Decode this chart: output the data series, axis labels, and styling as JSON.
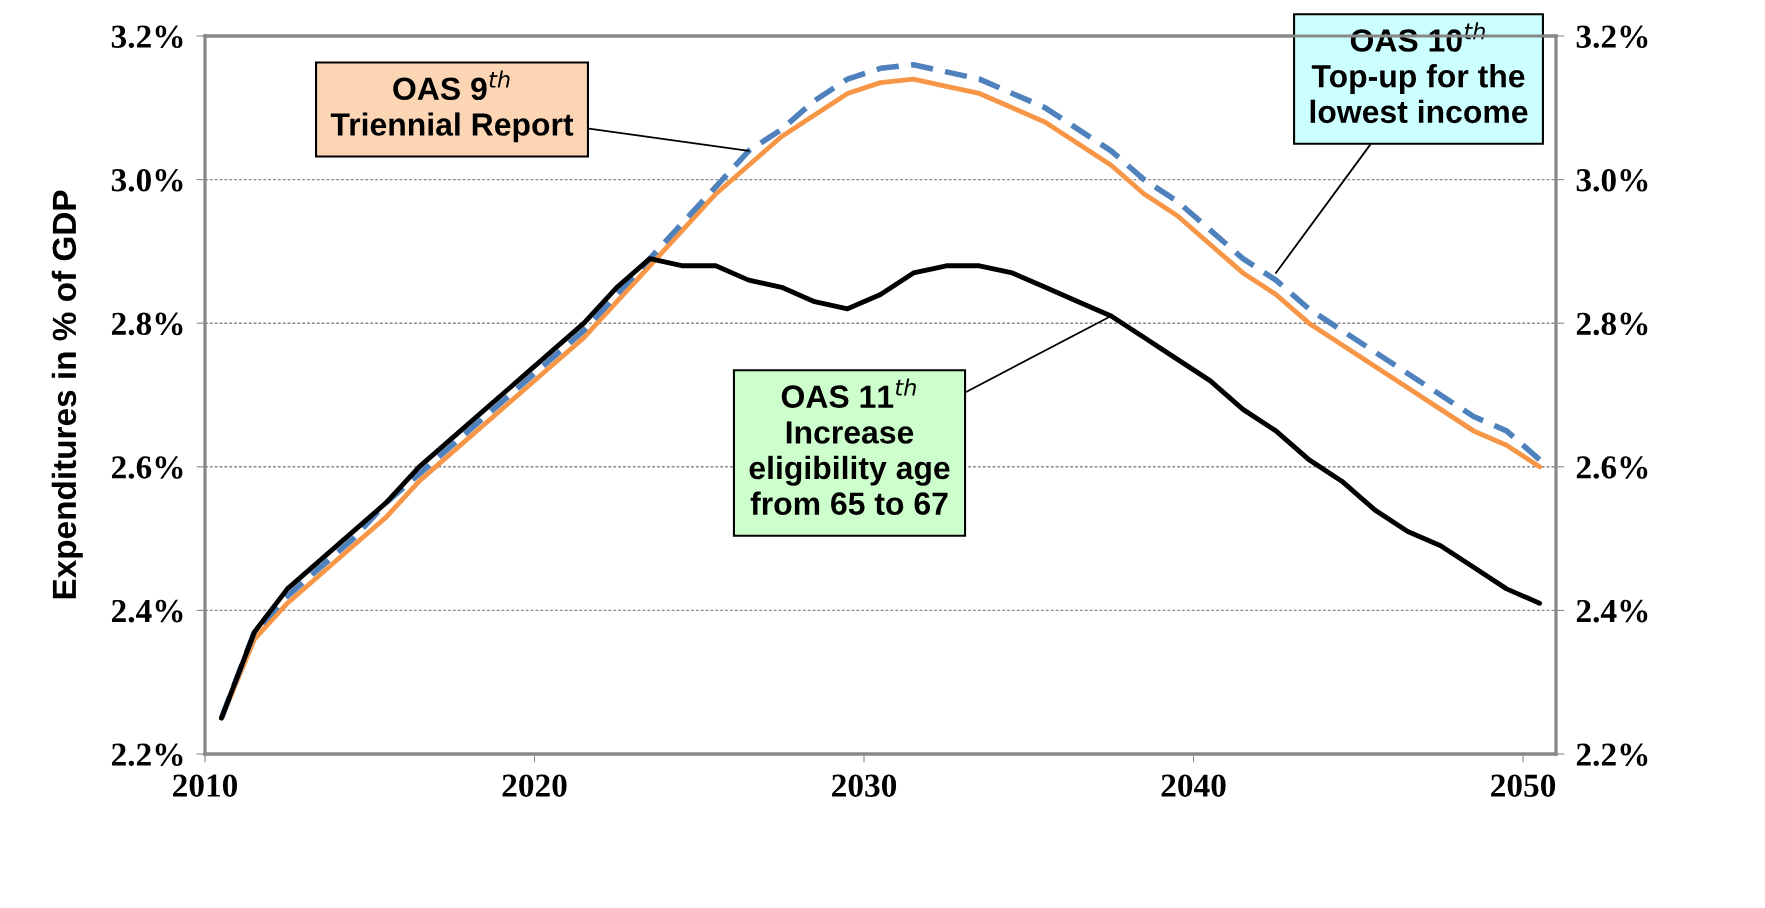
{
  "chart_data": {
    "type": "line",
    "ylabel": "Expenditures in % of GDP",
    "x": [
      2010.5,
      2011.5,
      2012.5,
      2013.5,
      2014.5,
      2015.5,
      2016.5,
      2017.5,
      2018.5,
      2019.5,
      2020.5,
      2021.5,
      2022.5,
      2023.5,
      2024.5,
      2025.5,
      2026.5,
      2027.5,
      2028.5,
      2029.5,
      2030.5,
      2031.5,
      2032.5,
      2033.5,
      2034.5,
      2035.5,
      2036.5,
      2037.5,
      2038.5,
      2039.5,
      2040.5,
      2041.5,
      2042.5,
      2043.5,
      2044.5,
      2045.5,
      2046.5,
      2047.5,
      2048.5,
      2049.5,
      2050.5
    ],
    "series": [
      {
        "color": "#f79646",
        "line_style": "solid",
        "values": [
          2.25,
          2.36,
          2.41,
          2.45,
          2.49,
          2.53,
          2.58,
          2.62,
          2.66,
          2.7,
          2.74,
          2.78,
          2.83,
          2.88,
          2.93,
          2.98,
          3.02,
          3.06,
          3.09,
          3.12,
          3.135,
          3.14,
          3.13,
          3.12,
          3.1,
          3.08,
          3.05,
          3.02,
          2.98,
          2.95,
          2.91,
          2.87,
          2.84,
          2.8,
          2.77,
          2.74,
          2.71,
          2.68,
          2.65,
          2.63,
          2.6
        ]
      },
      {
        "color": "#4f81bd",
        "line_style": "dashed",
        "values": [
          2.25,
          2.37,
          2.42,
          2.46,
          2.5,
          2.55,
          2.59,
          2.63,
          2.67,
          2.71,
          2.75,
          2.79,
          2.84,
          2.89,
          2.94,
          2.99,
          3.04,
          3.07,
          3.11,
          3.14,
          3.155,
          3.16,
          3.15,
          3.14,
          3.12,
          3.1,
          3.07,
          3.04,
          3.0,
          2.97,
          2.93,
          2.89,
          2.86,
          2.82,
          2.79,
          2.76,
          2.73,
          2.7,
          2.67,
          2.65,
          2.61
        ]
      },
      {
        "color": "#000000",
        "line_style": "solid",
        "values": [
          2.25,
          2.37,
          2.43,
          2.47,
          2.51,
          2.55,
          2.6,
          2.64,
          2.68,
          2.72,
          2.76,
          2.8,
          2.85,
          2.89,
          2.88,
          2.88,
          2.86,
          2.85,
          2.83,
          2.82,
          2.84,
          2.87,
          2.88,
          2.88,
          2.87,
          2.85,
          2.83,
          2.81,
          2.78,
          2.75,
          2.72,
          2.68,
          2.65,
          2.61,
          2.58,
          2.54,
          2.51,
          2.49,
          2.46,
          2.43,
          2.41
        ]
      }
    ],
    "xlim": [
      2010,
      2051
    ],
    "xticks": [
      2010,
      2020,
      2030,
      2040,
      2050
    ],
    "ylim": [
      2.2,
      3.2
    ],
    "yticks": [
      {
        "value": 2.2,
        "label": "2.2%"
      },
      {
        "value": 2.4,
        "label": "2.4%"
      },
      {
        "value": 2.6,
        "label": "2.6%"
      },
      {
        "value": 2.8,
        "label": "2.8%"
      },
      {
        "value": 3.0,
        "label": "3.0%"
      },
      {
        "value": 3.2,
        "label": "3.2%"
      }
    ],
    "y2lim": [
      2.2,
      3.2
    ],
    "y2ticks": [
      {
        "value": 2.2,
        "label": "2.2%"
      },
      {
        "value": 2.4,
        "label": "2.4%"
      },
      {
        "value": 2.6,
        "label": "2.6%"
      },
      {
        "value": 2.8,
        "label": "2.8%"
      },
      {
        "value": 3.0,
        "label": "3.0%"
      },
      {
        "value": 3.2,
        "label": "3.2%"
      }
    ],
    "grid": "y",
    "legend": false,
    "marker": "none",
    "annotations": [
      {
        "text": "OAS 9$^{th}$\nTriennial Report",
        "x": 2026.5,
        "y": 3.04
      },
      {
        "text": "OAS 10$^{th}$\nTop-up for the\nlowest income",
        "x": 2042.5,
        "y": 2.87
      },
      {
        "text": "OAS 11$^{th}$\nIncrease\neligibility age\nfrom 65 to 67",
        "x": 2037.5,
        "y": 2.81
      }
    ]
  }
}
